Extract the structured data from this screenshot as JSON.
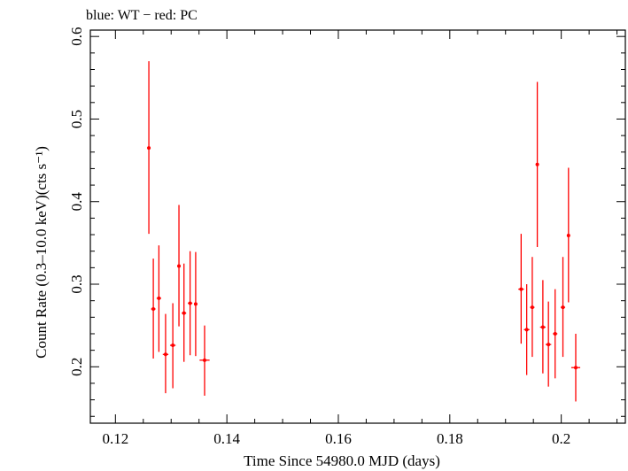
{
  "chart_data": {
    "type": "scatter",
    "title": "blue: WT − red: PC",
    "xlabel": "Time Since 54980.0 MJD (days)",
    "ylabel": "Count Rate (0.3–10.0 keV)(cts s⁻¹)",
    "xlim": [
      0.1155,
      0.2115
    ],
    "ylim": [
      0.1317,
      0.6077
    ],
    "grid": false,
    "x_ticks": [
      0.12,
      0.14,
      0.16,
      0.18,
      0.2
    ],
    "x_tick_labels": [
      "0.12",
      "0.14",
      "0.16",
      "0.18",
      "0.2"
    ],
    "y_ticks": [
      0.2,
      0.3,
      0.4,
      0.5,
      0.6
    ],
    "y_tick_labels": [
      "0.2",
      "0.3",
      "0.4",
      "0.5",
      "0.6"
    ],
    "series": [
      {
        "color": "#ff0000",
        "points": [
          {
            "x": 0.126,
            "y": 0.465,
            "xerr": 0.0003,
            "ylo": 0.361,
            "yhi": 0.57
          },
          {
            "x": 0.1268,
            "y": 0.27,
            "xerr": 0.0004,
            "ylo": 0.21,
            "yhi": 0.331
          },
          {
            "x": 0.1278,
            "y": 0.283,
            "xerr": 0.0004,
            "ylo": 0.218,
            "yhi": 0.347
          },
          {
            "x": 0.129,
            "y": 0.215,
            "xerr": 0.0005,
            "ylo": 0.168,
            "yhi": 0.264
          },
          {
            "x": 0.1303,
            "y": 0.226,
            "xerr": 0.0005,
            "ylo": 0.174,
            "yhi": 0.277
          },
          {
            "x": 0.1314,
            "y": 0.322,
            "xerr": 0.0003,
            "ylo": 0.249,
            "yhi": 0.396
          },
          {
            "x": 0.1323,
            "y": 0.265,
            "xerr": 0.0004,
            "ylo": 0.206,
            "yhi": 0.325
          },
          {
            "x": 0.1334,
            "y": 0.277,
            "xerr": 0.0004,
            "ylo": 0.214,
            "yhi": 0.34
          },
          {
            "x": 0.1344,
            "y": 0.276,
            "xerr": 0.0003,
            "ylo": 0.213,
            "yhi": 0.339
          },
          {
            "x": 0.136,
            "y": 0.208,
            "xerr": 0.0009,
            "ylo": 0.165,
            "yhi": 0.25
          },
          {
            "x": 0.1928,
            "y": 0.294,
            "xerr": 0.0005,
            "ylo": 0.228,
            "yhi": 0.361
          },
          {
            "x": 0.1938,
            "y": 0.245,
            "xerr": 0.0005,
            "ylo": 0.19,
            "yhi": 0.3
          },
          {
            "x": 0.1948,
            "y": 0.272,
            "xerr": 0.0004,
            "ylo": 0.212,
            "yhi": 0.333
          },
          {
            "x": 0.1957,
            "y": 0.445,
            "xerr": 0.0002,
            "ylo": 0.345,
            "yhi": 0.545
          },
          {
            "x": 0.1967,
            "y": 0.248,
            "xerr": 0.0005,
            "ylo": 0.192,
            "yhi": 0.305
          },
          {
            "x": 0.1977,
            "y": 0.227,
            "xerr": 0.0005,
            "ylo": 0.176,
            "yhi": 0.279
          },
          {
            "x": 0.1989,
            "y": 0.24,
            "xerr": 0.0004,
            "ylo": 0.186,
            "yhi": 0.294
          },
          {
            "x": 0.2003,
            "y": 0.272,
            "xerr": 0.0004,
            "ylo": 0.212,
            "yhi": 0.333
          },
          {
            "x": 0.2013,
            "y": 0.359,
            "xerr": 0.0002,
            "ylo": 0.278,
            "yhi": 0.441
          },
          {
            "x": 0.2026,
            "y": 0.199,
            "xerr": 0.0008,
            "ylo": 0.158,
            "yhi": 0.24
          }
        ]
      }
    ]
  }
}
